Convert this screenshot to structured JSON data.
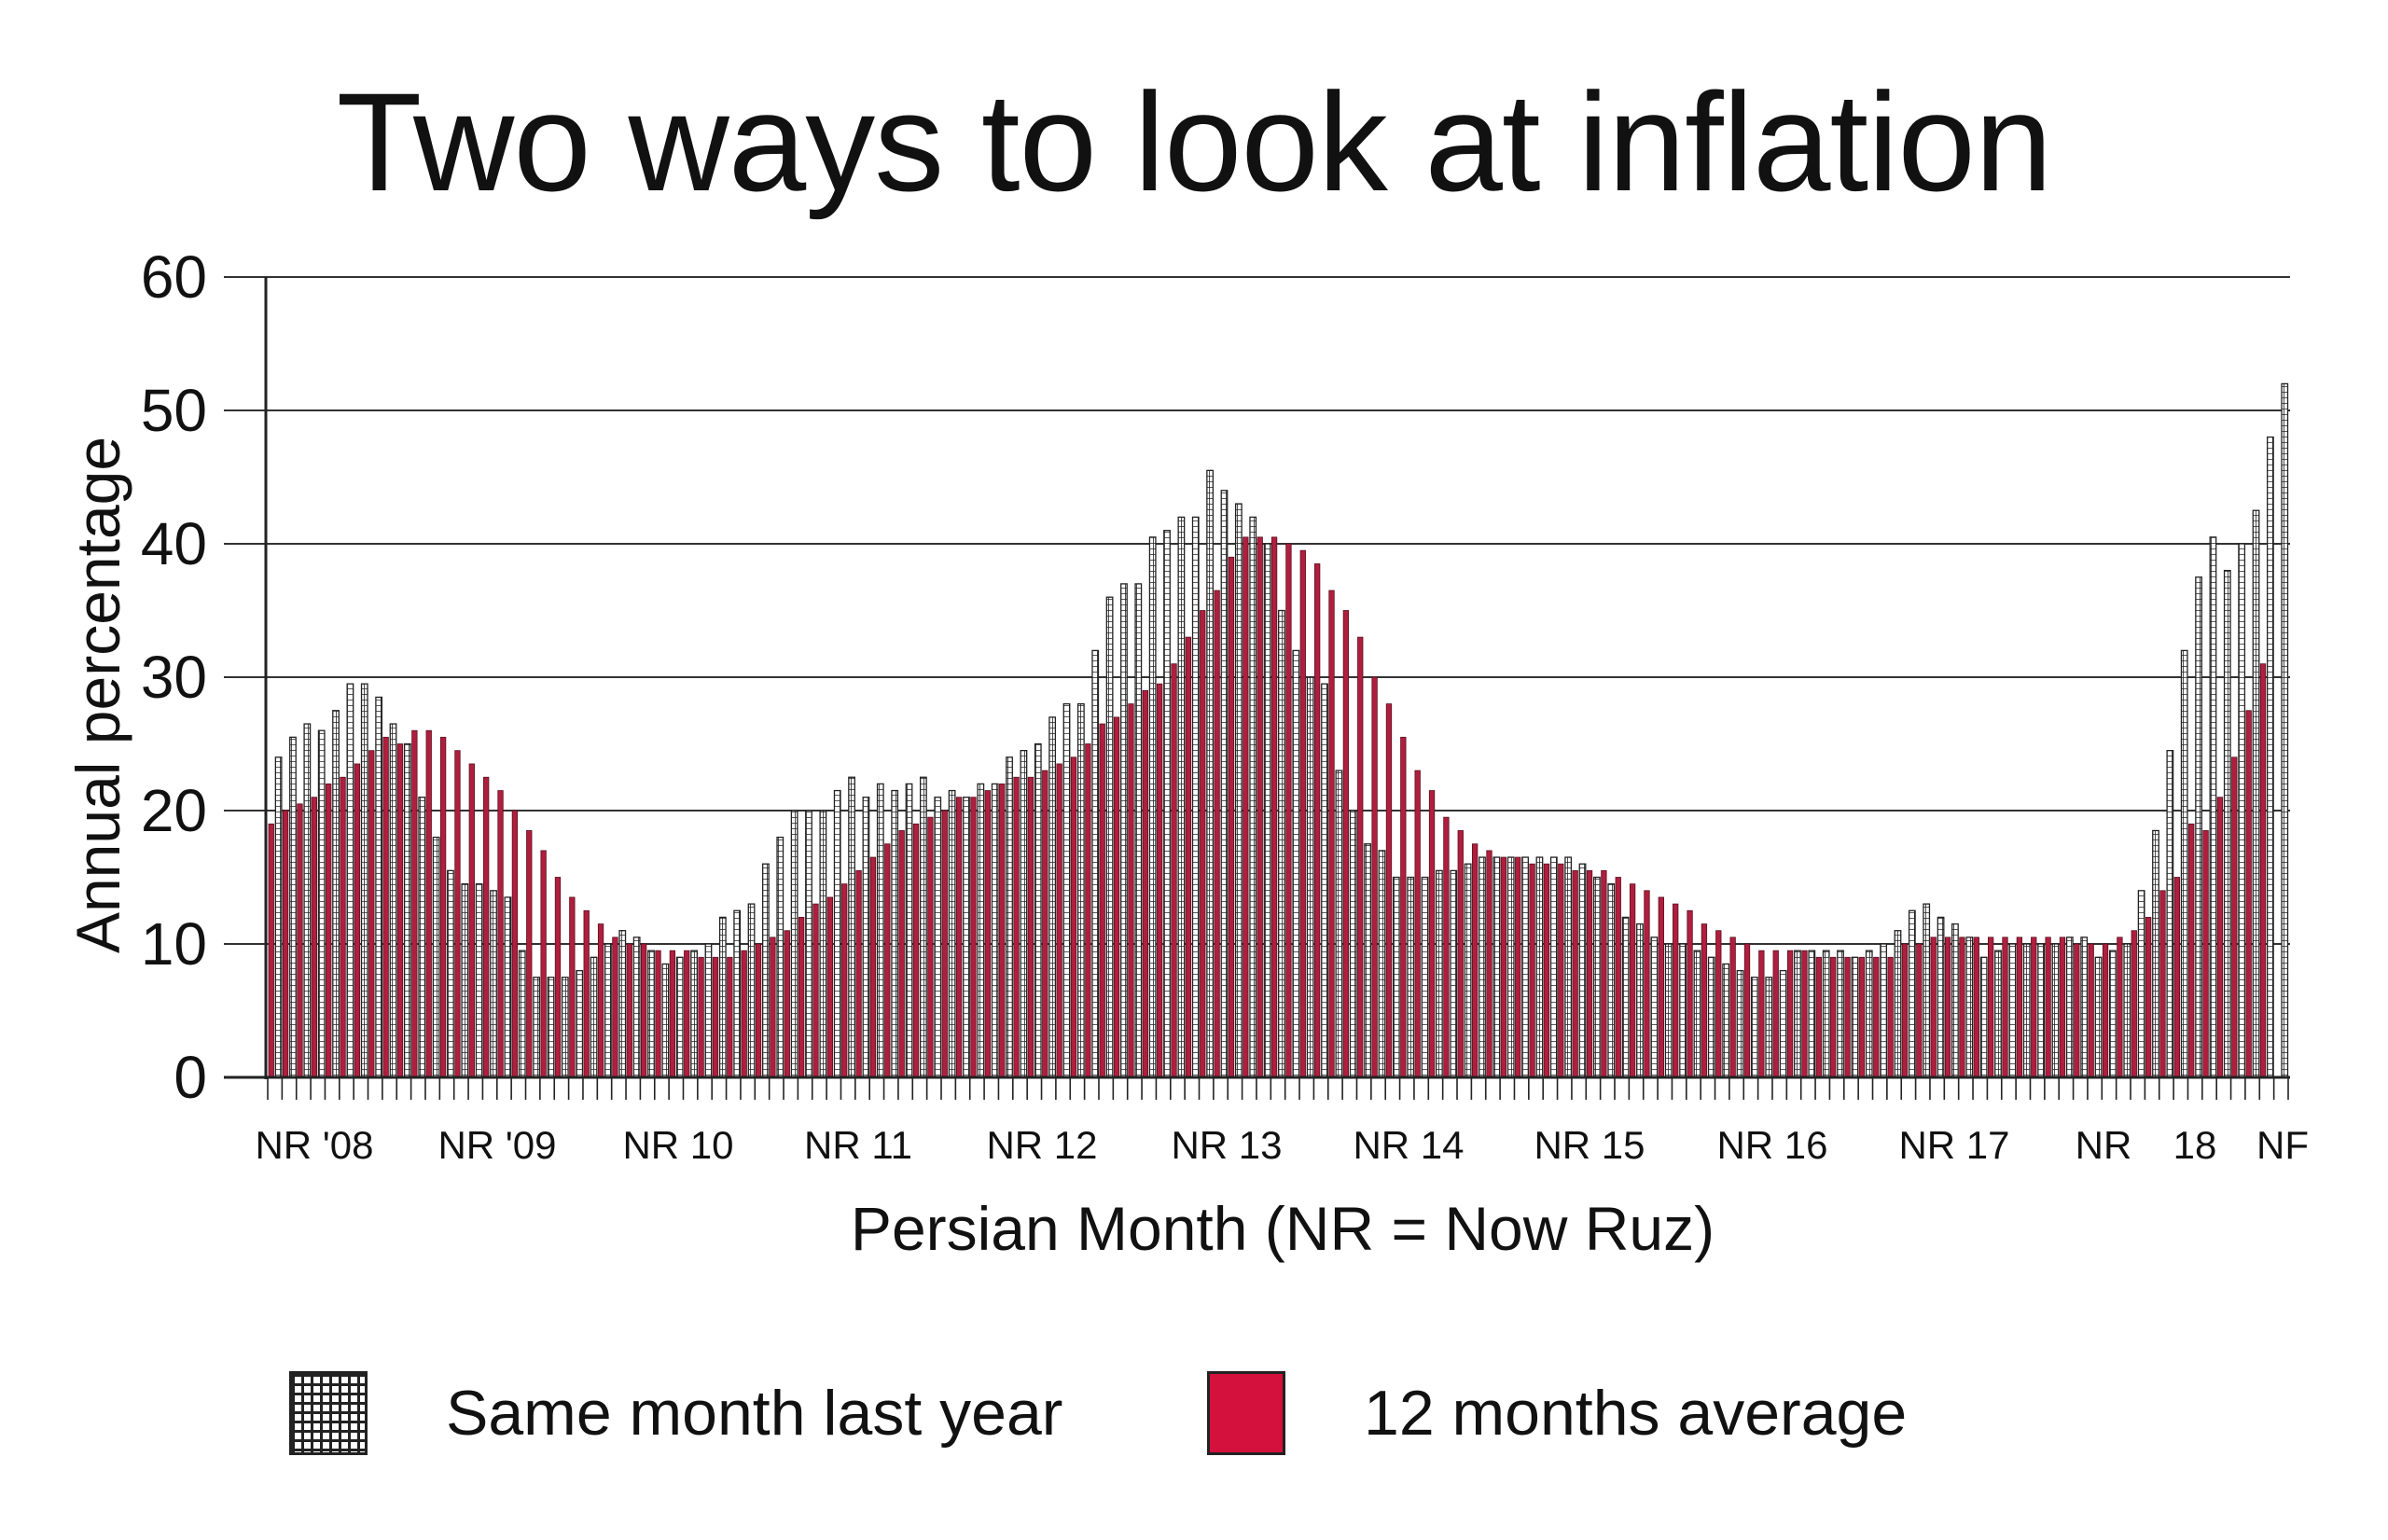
{
  "chart_data": {
    "type": "bar",
    "title": "Two ways to look at inflation",
    "xlabel": "Persian Month (NR = Now Ruz)",
    "ylabel": "Annual percentage",
    "ylim": [
      0,
      60
    ],
    "yticks": [
      "0",
      "10",
      "20",
      "30",
      "40",
      "50",
      "60"
    ],
    "grid": true,
    "xtick_labels": [
      "NR '08",
      "NR '09",
      "NR 10",
      "NR 11",
      "NR 12",
      "NR 13",
      "NR 14",
      "NR 15",
      "NR 16",
      "NR 17",
      "NR",
      "18",
      "NF"
    ],
    "series": [
      {
        "name": "Same month last year",
        "color": "#ffffff",
        "pattern": "grid",
        "values": [
          24,
          25.5,
          26.5,
          26,
          27.5,
          29.5,
          29.5,
          28.5,
          26.5,
          25,
          21,
          18,
          15.5,
          14.5,
          14.5,
          14,
          13.5,
          9.5,
          7.5,
          7.5,
          7.5,
          8,
          9,
          10,
          11,
          10.5,
          9.5,
          8.5,
          9,
          9.5,
          10,
          12,
          12.5,
          13,
          16,
          18,
          20,
          20,
          20,
          21.5,
          22.5,
          21,
          22,
          21.5,
          22,
          22.5,
          21,
          21.5,
          21,
          22,
          22,
          24,
          24.5,
          25,
          27,
          28,
          28,
          32,
          36,
          37,
          37,
          40.5,
          41,
          42,
          42,
          45.5,
          44,
          43,
          42,
          40,
          35,
          32,
          30,
          29.5,
          23,
          20,
          17.5,
          17,
          15,
          15,
          15,
          15.5,
          15.5,
          16,
          16.5,
          16.5,
          16.5,
          16.5,
          16.5,
          16.5,
          16.5,
          16,
          15,
          14.5,
          12,
          11.5,
          10.5,
          10,
          10,
          9.5,
          9,
          8.5,
          8,
          7.5,
          7.5,
          8,
          9.5,
          9.5,
          9.5,
          9.5,
          9,
          9.5,
          10,
          11,
          12.5,
          13,
          12,
          11.5,
          10.5,
          9,
          9.5,
          10,
          10,
          10,
          10,
          10.5,
          10.5,
          9,
          9.5,
          10,
          14,
          18.5,
          24.5,
          32,
          37.5,
          40.5,
          38,
          40,
          42.5,
          48,
          52
        ]
      },
      {
        "name": "12 months average",
        "color": "#b01e3e",
        "pattern": "solid",
        "values": [
          19,
          20,
          20.5,
          21,
          22,
          22.5,
          23.5,
          24.5,
          25.5,
          25,
          26,
          26,
          25.5,
          24.5,
          23.5,
          22.5,
          21.5,
          20,
          18.5,
          17,
          15,
          13.5,
          12.5,
          11.5,
          10.5,
          10,
          10,
          9.5,
          9.5,
          9.5,
          9,
          9,
          9,
          9.5,
          10,
          10.5,
          11,
          12,
          13,
          13.5,
          14.5,
          15.5,
          16.5,
          17.5,
          18.5,
          19,
          19.5,
          20,
          21,
          21,
          21.5,
          22,
          22.5,
          22.5,
          23,
          23.5,
          24,
          25,
          26.5,
          27,
          28,
          29,
          29.5,
          31,
          33,
          35,
          36.5,
          39,
          40.5,
          40.5,
          40.5,
          40,
          39.5,
          38.5,
          36.5,
          35,
          33,
          30,
          28,
          25.5,
          23,
          21.5,
          19.5,
          18.5,
          17.5,
          17,
          16.5,
          16.5,
          16,
          16,
          16,
          15.5,
          15.5,
          15.5,
          15,
          14.5,
          14,
          13.5,
          13,
          12.5,
          11.5,
          11,
          10.5,
          10,
          9.5,
          9.5,
          9.5,
          9.5,
          9,
          9,
          9,
          9,
          9,
          9,
          10,
          10,
          10.5,
          10.5,
          10.5,
          10.5,
          10.5,
          10.5,
          10.5,
          10.5,
          10.5,
          10.5,
          10,
          10,
          10,
          10.5,
          11,
          12,
          14,
          15,
          19,
          18.5,
          21,
          24,
          27.5,
          31
        ]
      }
    ]
  },
  "legend": {
    "items": [
      {
        "label": "Same month last year"
      },
      {
        "label": "12 months average"
      }
    ]
  }
}
